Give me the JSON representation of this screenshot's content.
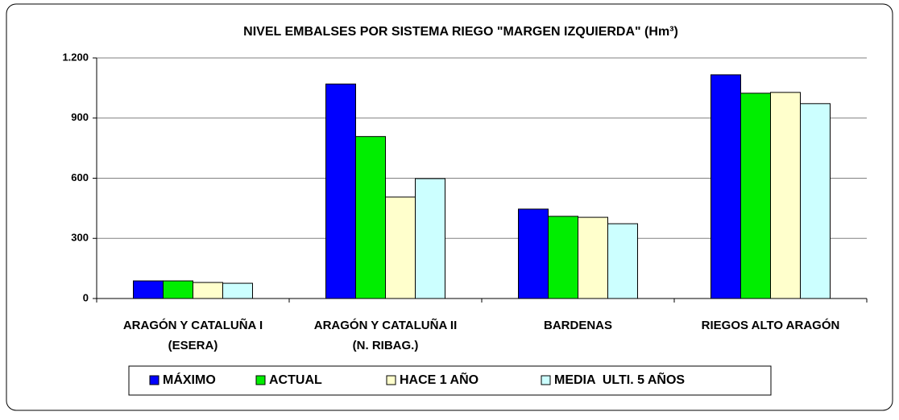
{
  "chart_data": {
    "type": "bar",
    "title": "NIVEL EMBALSES POR SISTEMA  RIEGO \"MARGEN IZQUIERDA\" (Hm³)",
    "categories": [
      [
        "ARAGÓN Y CATALUÑA I",
        "(ESERA)"
      ],
      [
        "ARAGÓN Y CATALUÑA II",
        "(N. RIBAG.)"
      ],
      [
        "BARDENAS"
      ],
      [
        "RIEGOS ALTO ARAGÓN"
      ]
    ],
    "series": [
      {
        "name": "MÁXIMO",
        "color": "#0000ff",
        "values": [
          88,
          1070,
          446,
          1116
        ]
      },
      {
        "name": "ACTUAL",
        "color": "#00ee00",
        "values": [
          88,
          808,
          410,
          1024
        ]
      },
      {
        "name": "HACE 1 AÑO",
        "color": "#ffffcc",
        "values": [
          80,
          506,
          405,
          1028
        ]
      },
      {
        "name": "MEDIA  ULTI. 5 AÑOS",
        "color": "#ccffff",
        "values": [
          76,
          598,
          373,
          972
        ]
      }
    ],
    "ylim": [
      0,
      1200
    ],
    "yticks": [
      0,
      300,
      600,
      900,
      {
        "value": 1200,
        "label": "1.200"
      }
    ],
    "grid": true,
    "legend": "bottom"
  }
}
